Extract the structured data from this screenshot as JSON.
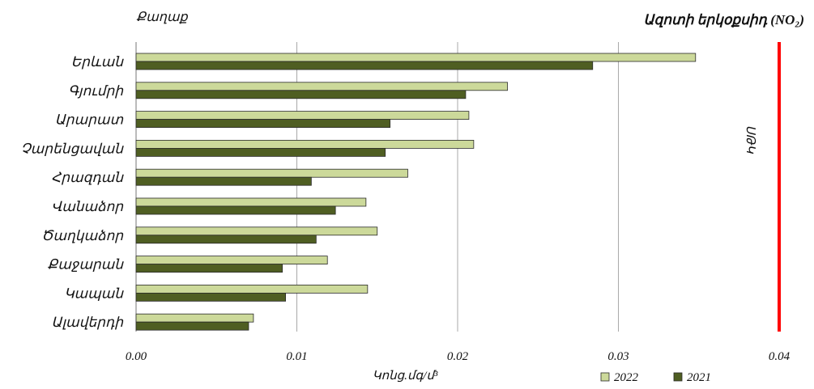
{
  "chart_data": {
    "type": "bar",
    "orientation": "horizontal",
    "title": "Ազոտի երկօքսիդ (NO₂)",
    "ylabel": "Քաղաք",
    "xlabel": "Կոնց.մգ/մ³",
    "categories": [
      "Երևան",
      "Գյումրի",
      "Արարատ",
      "Չարենցավան",
      "Հրազդան",
      "Վանաձոր",
      "Ծաղկաձոր",
      "Քաջարան",
      "Կապան",
      "Ալավերդի"
    ],
    "series": [
      {
        "name": "2022",
        "color": "#ccd99a",
        "values": [
          0.0348,
          0.0231,
          0.0207,
          0.021,
          0.0169,
          0.0143,
          0.015,
          0.0119,
          0.0144,
          0.0073
        ]
      },
      {
        "name": "2021",
        "color": "#4f5e22",
        "values": [
          0.0284,
          0.0205,
          0.0158,
          0.0155,
          0.0109,
          0.0124,
          0.0112,
          0.0091,
          0.0093,
          0.007
        ]
      }
    ],
    "xlim": [
      0,
      0.04
    ],
    "xticks": [
      "0.00",
      "0.01",
      "0.02",
      "0.03",
      "0.04"
    ],
    "grid": "vertical",
    "reference_line": {
      "label": "ՍԹԿ",
      "value": 0.04,
      "color": "#ff0000"
    },
    "legend_position": "bottom-right"
  }
}
